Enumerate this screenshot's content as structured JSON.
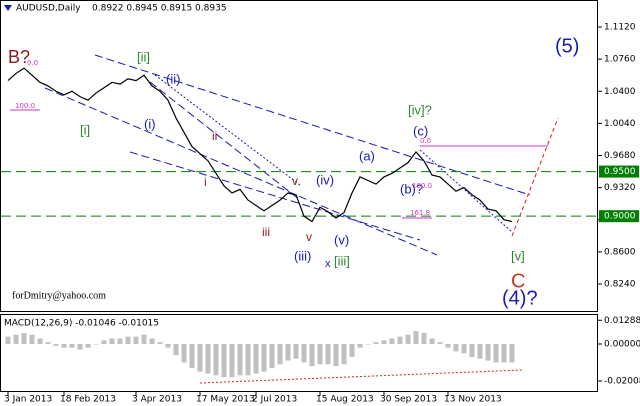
{
  "header": {
    "symbol": "AUDUSD,Daily",
    "ohlc": "0.8922 0.8945 0.8915 0.8935"
  },
  "watermark": "forDmitry@yahoo.com",
  "annotations": [
    "B?",
    "[ii]",
    "(ii)",
    "[i]",
    "(i)",
    "ii",
    "i",
    "v",
    "(iv)",
    "iii",
    "v",
    "(iii)",
    "x",
    "[iii]",
    "(v)",
    "(a)",
    "(b)?",
    "(c)",
    "[iv]?",
    "[v]",
    "C",
    "(4)?",
    "(5)"
  ],
  "fibo_labels": [
    "0.0",
    "100.0",
    "161.8",
    "100.0",
    "0.0"
  ],
  "chart_data": [
    {
      "type": "line",
      "color": "#000000",
      "categories": [
        "3 Jan 2013",
        null,
        null,
        null,
        null,
        null,
        null,
        "18 Feb 2013",
        null,
        null,
        null,
        null,
        null,
        null,
        null,
        null,
        "3 Apr 2013",
        null,
        null,
        null,
        null,
        null,
        null,
        null,
        "17 May 2013",
        null,
        null,
        null,
        null,
        null,
        null,
        "2 Jul 2013",
        null,
        null,
        null,
        null,
        null,
        null,
        null,
        "15 Aug 2013",
        null,
        null,
        null,
        null,
        null,
        null,
        null,
        "30 Sep 2013",
        null,
        null,
        null,
        null,
        null,
        null,
        null,
        "13 Nov 2013",
        null,
        null,
        null,
        null,
        null,
        null,
        null,
        null
      ],
      "values": [
        1.052,
        1.06,
        1.066,
        1.058,
        1.05,
        1.046,
        1.04,
        1.036,
        1.04,
        1.034,
        1.03,
        1.038,
        1.044,
        1.05,
        1.048,
        1.054,
        1.052,
        1.058,
        1.046,
        1.04,
        1.03,
        1.01,
        0.994,
        0.978,
        0.97,
        0.962,
        0.948,
        0.934,
        0.926,
        0.93,
        0.918,
        0.912,
        0.906,
        0.912,
        0.918,
        0.926,
        0.924,
        0.9,
        0.894,
        0.91,
        0.905,
        0.898,
        0.904,
        0.926,
        0.944,
        0.94,
        0.936,
        0.944,
        0.948,
        0.954,
        0.96,
        0.972,
        0.962,
        0.946,
        0.944,
        0.936,
        0.928,
        0.932,
        0.924,
        0.918,
        0.908,
        0.906,
        0.896,
        0.894
      ],
      "ylim": [
        0.7926,
        1.1423
      ],
      "yticks": [
        {
          "value": 1.112,
          "label": "1.1120"
        },
        {
          "value": 1.076,
          "label": "1.0760"
        },
        {
          "value": 1.04,
          "label": "1.0400"
        },
        {
          "value": 1.004,
          "label": "1.0040"
        },
        {
          "value": 0.968,
          "label": "0.9680"
        },
        {
          "value": 0.932,
          "label": "0.9320"
        },
        {
          "value": 0.896,
          "label": "0.8960"
        },
        {
          "value": 0.86,
          "label": "0.8600"
        },
        {
          "value": 0.824,
          "label": "0.8240"
        }
      ],
      "levels": [
        {
          "value": 0.95,
          "label": "0.9500"
        },
        {
          "value": 0.9,
          "label": "0.9000"
        }
      ],
      "level_color": "#008000"
    },
    {
      "type": "bar",
      "title": "MACD(12,26,9) -0.01046 -0.01015",
      "color": "#c0c0c0",
      "values": [
        0.004,
        0.005,
        0.006,
        0.005,
        0.003,
        0.001,
        -0.001,
        -0.002,
        -0.002,
        -0.003,
        -0.002,
        0.0,
        0.002,
        0.003,
        0.003,
        0.004,
        0.004,
        0.005,
        0.003,
        0.001,
        -0.002,
        -0.006,
        -0.01,
        -0.013,
        -0.015,
        -0.016,
        -0.017,
        -0.018,
        -0.018,
        -0.017,
        -0.017,
        -0.016,
        -0.015,
        -0.013,
        -0.011,
        -0.009,
        -0.008,
        -0.01,
        -0.012,
        -0.011,
        -0.011,
        -0.012,
        -0.011,
        -0.007,
        -0.002,
        0.0,
        0.001,
        0.002,
        0.003,
        0.004,
        0.005,
        0.007,
        0.006,
        0.003,
        0.001,
        -0.002,
        -0.004,
        -0.005,
        -0.007,
        -0.008,
        -0.009,
        -0.01,
        -0.01,
        -0.01
      ],
      "ylim": [
        -0.02604,
        0.01628
      ],
      "yticks": [
        0.01288,
        {
          "value": 0,
          "label": "0.00000"
        },
        -0.02008
      ]
    }
  ]
}
